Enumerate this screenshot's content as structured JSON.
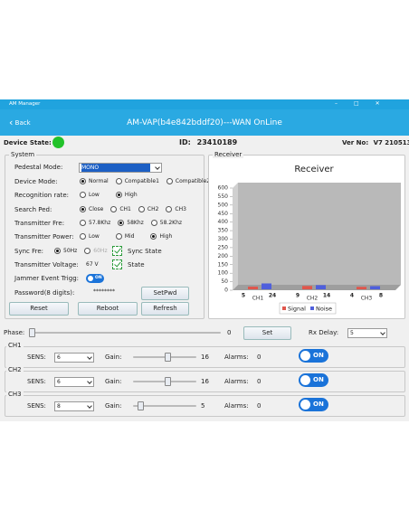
{
  "window": {
    "title": "AM Manager"
  },
  "header": {
    "back": "Back",
    "title": "AM-VAP(b4e842bddf20)---WAN OnLine"
  },
  "status": {
    "device_state_label": "Device State:",
    "id_label": "ID:",
    "id": "23410189",
    "ver_label": "Ver No:",
    "ver": "V7 210513"
  },
  "system": {
    "title": "System",
    "pedestal_mode": {
      "label": "Pedestal Mode:",
      "value": "MONO"
    },
    "device_mode": {
      "label": "Device Mode:",
      "options": [
        "Normal",
        "Compatible1",
        "Compatible2"
      ],
      "selected": 0
    },
    "recognition_rate": {
      "label": "Recognition rate:",
      "options": [
        "Low",
        "High"
      ],
      "selected": 1
    },
    "search_ped": {
      "label": "Search Ped:",
      "options": [
        "Close",
        "CH1",
        "CH2",
        "CH3"
      ],
      "selected": 0
    },
    "transmitter_fre": {
      "label": "Transmitter Fre:",
      "options": [
        "57.8Khz",
        "58Khz",
        "58.2Khz"
      ],
      "selected": 1
    },
    "transmitter_power": {
      "label": "Transmitter Power:",
      "options": [
        "Low",
        "Mid",
        "High"
      ],
      "selected": 2
    },
    "sync_fre": {
      "label": "Sync Fre:",
      "options": [
        "50Hz",
        "60Hz"
      ],
      "selected": 0,
      "sync_state": "Sync State"
    },
    "transmitter_voltage": {
      "label": "Transmitter Voltage:",
      "value": "67 V",
      "state": "State"
    },
    "jammer": {
      "label": "Jammer Event Trigg:",
      "toggle": "ON"
    },
    "password": {
      "label": "Password(8 digits):",
      "value": "********",
      "button": "SetPwd"
    },
    "buttons": [
      "Reset",
      "Reboot",
      "Refresh"
    ]
  },
  "receiver": {
    "title": "Receiver"
  },
  "chart_data": {
    "type": "bar",
    "title": "Receiver",
    "categories": [
      "CH1",
      "CH2",
      "CH3"
    ],
    "series": [
      {
        "name": "Signal",
        "color": "#e0564c",
        "values": [
          5,
          9,
          4
        ]
      },
      {
        "name": "Noise",
        "color": "#4f5fdc",
        "values": [
          24,
          14,
          8
        ]
      }
    ],
    "ylim": [
      0,
      600
    ],
    "yticks": [
      0,
      50,
      100,
      150,
      200,
      250,
      300,
      350,
      400,
      450,
      500,
      550,
      600
    ]
  },
  "phase": {
    "label": "Phase:",
    "value": "0",
    "button": "Set",
    "rx_delay_label": "Rx Delay:",
    "rx_delay": "5"
  },
  "channels": [
    {
      "title": "CH1",
      "sens_label": "SENS:",
      "sens": "6",
      "gain_label": "Gain:",
      "gain": "16",
      "alarms_label": "Alarms:",
      "alarms": "0",
      "toggle": "ON"
    },
    {
      "title": "CH2",
      "sens_label": "SENS:",
      "sens": "6",
      "gain_label": "Gain:",
      "gain": "16",
      "alarms_label": "Alarms:",
      "alarms": "0",
      "toggle": "ON"
    },
    {
      "title": "CH3",
      "sens_label": "SENS:",
      "sens": "8",
      "gain_label": "Gain:",
      "gain": "5",
      "alarms_label": "Alarms:",
      "alarms": "0",
      "toggle": "ON"
    }
  ]
}
